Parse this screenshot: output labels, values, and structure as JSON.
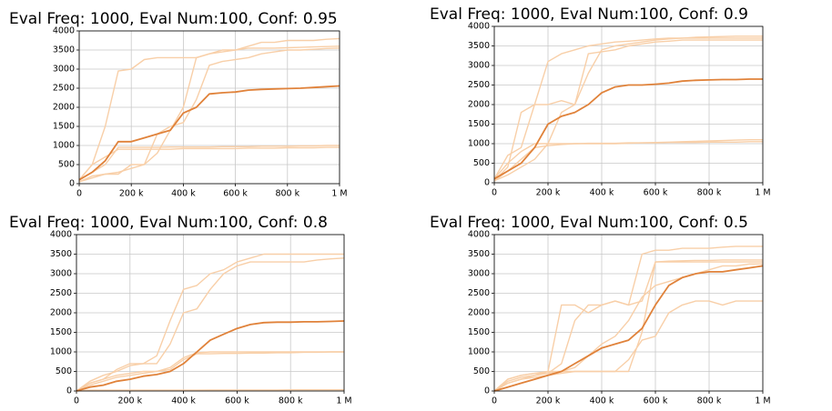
{
  "chart_data": [
    {
      "type": "line",
      "title": "Eval Freq: 1000, Eval Num:100, Conf: 0.95",
      "x": [
        0,
        50000,
        100000,
        150000,
        200000,
        250000,
        300000,
        350000,
        400000,
        450000,
        500000,
        550000,
        600000,
        650000,
        700000,
        750000,
        800000,
        850000,
        900000,
        950000,
        1000000
      ],
      "xlim": [
        0,
        1000000
      ],
      "xticks": [
        0,
        {
          "value": 200000,
          "label": "200 k"
        },
        {
          "value": 400000,
          "label": "400 k"
        },
        {
          "value": 600000,
          "label": "600 k"
        },
        {
          "value": 800000,
          "label": "800 k"
        },
        {
          "value": 1000000,
          "label": "1 M"
        }
      ],
      "ylim": [
        0,
        4000
      ],
      "yticks": [
        0,
        500,
        1000,
        1500,
        2000,
        2500,
        3000,
        3500,
        4000
      ],
      "grid": true,
      "series": [
        {
          "color": "#f8cfa8",
          "values": [
            100,
            500,
            1500,
            2950,
            3000,
            3250,
            3300,
            3300,
            3300,
            3300,
            3400,
            3450,
            3500,
            3600,
            3700,
            3700,
            3750,
            3750,
            3750,
            3780,
            3800
          ]
        },
        {
          "color": "#f8cfa8",
          "values": [
            100,
            500,
            700,
            900,
            900,
            900,
            900,
            900,
            920,
            920,
            920,
            920,
            920,
            930,
            930,
            930,
            940,
            940,
            940,
            950,
            950
          ]
        },
        {
          "color": "#f8cfa8",
          "values": [
            100,
            300,
            500,
            950,
            950,
            950,
            950,
            960,
            960,
            960,
            960,
            970,
            970,
            970,
            980,
            980,
            980,
            990,
            990,
            1000,
            1000
          ]
        },
        {
          "color": "#f8cfa8",
          "values": [
            50,
            200,
            250,
            250,
            500,
            500,
            800,
            1400,
            2000,
            3300,
            3400,
            3500,
            3500,
            3550,
            3550,
            3550,
            3560,
            3570,
            3580,
            3590,
            3600
          ]
        },
        {
          "color": "#f8cfa8",
          "values": [
            50,
            150,
            250,
            300,
            400,
            500,
            1300,
            1500,
            1600,
            2200,
            3100,
            3200,
            3250,
            3300,
            3400,
            3450,
            3500,
            3500,
            3520,
            3540,
            3550
          ]
        },
        {
          "color": "#e0823a",
          "values": [
            100,
            300,
            600,
            1100,
            1100,
            1200,
            1300,
            1400,
            1850,
            2000,
            2350,
            2380,
            2400,
            2450,
            2470,
            2480,
            2490,
            2500,
            2520,
            2540,
            2560
          ]
        }
      ]
    },
    {
      "type": "line",
      "title": "Eval Freq: 1000, Eval Num:100, Conf: 0.9",
      "x": [
        0,
        50000,
        100000,
        150000,
        200000,
        250000,
        300000,
        350000,
        400000,
        450000,
        500000,
        550000,
        600000,
        650000,
        700000,
        750000,
        800000,
        850000,
        900000,
        950000,
        1000000
      ],
      "xlim": [
        0,
        1000000
      ],
      "xticks": [
        0,
        {
          "value": 200000,
          "label": "200 k"
        },
        {
          "value": 400000,
          "label": "400 k"
        },
        {
          "value": 600000,
          "label": "600 k"
        },
        {
          "value": 800000,
          "label": "800 k"
        },
        {
          "value": 1000000,
          "label": "1 M"
        }
      ],
      "ylim": [
        0,
        4000
      ],
      "yticks": [
        0,
        500,
        1000,
        1500,
        2000,
        2500,
        3000,
        3500,
        4000
      ],
      "grid": true,
      "series": [
        {
          "color": "#f8cfa8",
          "values": [
            100,
            700,
            900,
            2000,
            3100,
            3300,
            3400,
            3500,
            3550,
            3600,
            3620,
            3650,
            3680,
            3700,
            3700,
            3720,
            3730,
            3740,
            3750,
            3750,
            3750
          ]
        },
        {
          "color": "#f8cfa8",
          "values": [
            100,
            500,
            800,
            1000,
            1000,
            1000,
            1000,
            1010,
            1010,
            1010,
            1020,
            1020,
            1020,
            1030,
            1030,
            1030,
            1040,
            1040,
            1040,
            1050,
            1050
          ]
        },
        {
          "color": "#f8cfa8",
          "values": [
            50,
            400,
            1800,
            2000,
            2000,
            2100,
            2000,
            2800,
            3400,
            3500,
            3550,
            3600,
            3650,
            3680,
            3700,
            3700,
            3700,
            3700,
            3700,
            3700,
            3700
          ]
        },
        {
          "color": "#f8cfa8",
          "values": [
            50,
            300,
            600,
            900,
            950,
            980,
            1000,
            1000,
            1000,
            1000,
            1010,
            1020,
            1030,
            1040,
            1050,
            1060,
            1070,
            1080,
            1090,
            1100,
            1100
          ]
        },
        {
          "color": "#f8cfa8",
          "values": [
            50,
            200,
            400,
            600,
            1000,
            1800,
            2000,
            3300,
            3350,
            3400,
            3500,
            3550,
            3600,
            3620,
            3650,
            3650,
            3650,
            3650,
            3650,
            3650,
            3650
          ]
        },
        {
          "color": "#e0823a",
          "values": [
            100,
            300,
            500,
            900,
            1500,
            1700,
            1800,
            2000,
            2300,
            2450,
            2500,
            2500,
            2520,
            2550,
            2600,
            2620,
            2630,
            2640,
            2640,
            2650,
            2650
          ]
        }
      ]
    },
    {
      "type": "line",
      "title": "Eval Freq: 1000, Eval Num:100, Conf: 0.8",
      "x": [
        0,
        50000,
        100000,
        150000,
        200000,
        250000,
        300000,
        350000,
        400000,
        450000,
        500000,
        550000,
        600000,
        650000,
        700000,
        750000,
        800000,
        850000,
        900000,
        950000,
        1000000
      ],
      "xlim": [
        0,
        1000000
      ],
      "xticks": [
        0,
        {
          "value": 200000,
          "label": "200 k"
        },
        {
          "value": 400000,
          "label": "400 k"
        },
        {
          "value": 600000,
          "label": "600 k"
        },
        {
          "value": 800000,
          "label": "800 k"
        },
        {
          "value": 1000000,
          "label": "1 M"
        }
      ],
      "ylim": [
        0,
        4000
      ],
      "yticks": [
        0,
        500,
        1000,
        1500,
        2000,
        2500,
        3000,
        3500,
        4000
      ],
      "grid": true,
      "series": [
        {
          "color": "#f8cfa8",
          "values": [
            0,
            200,
            300,
            550,
            700,
            700,
            900,
            1800,
            2600,
            2700,
            3000,
            3100,
            3300,
            3400,
            3500,
            3500,
            3500,
            3500,
            3500,
            3500,
            3500
          ]
        },
        {
          "color": "#f8cfa8",
          "values": [
            0,
            250,
            400,
            500,
            650,
            700,
            700,
            1200,
            2000,
            2100,
            2600,
            3000,
            3200,
            3300,
            3300,
            3300,
            3300,
            3300,
            3350,
            3380,
            3400
          ]
        },
        {
          "color": "#f8cfa8",
          "values": [
            0,
            200,
            300,
            400,
            450,
            500,
            500,
            550,
            800,
            950,
            950,
            960,
            960,
            970,
            970,
            980,
            980,
            990,
            990,
            1000,
            1000
          ]
        },
        {
          "color": "#f8cfa8",
          "values": [
            0,
            20,
            20,
            20,
            20,
            20,
            20,
            20,
            20,
            20,
            25,
            25,
            25,
            25,
            25,
            25,
            30,
            30,
            30,
            30,
            30
          ]
        },
        {
          "color": "#f8cfa8",
          "values": [
            0,
            150,
            250,
            350,
            400,
            450,
            500,
            600,
            850,
            980,
            1000,
            1000,
            1000,
            1000,
            1000,
            1000,
            1000,
            1000,
            1000,
            1000,
            1000
          ]
        },
        {
          "color": "#e0823a",
          "values": [
            0,
            100,
            150,
            250,
            300,
            380,
            420,
            500,
            700,
            1000,
            1300,
            1450,
            1600,
            1700,
            1750,
            1760,
            1760,
            1770,
            1770,
            1780,
            1790
          ]
        }
      ]
    },
    {
      "type": "line",
      "title": "Eval Freq: 1000, Eval Num:100, Conf: 0.5",
      "x": [
        0,
        50000,
        100000,
        150000,
        200000,
        250000,
        300000,
        350000,
        400000,
        450000,
        500000,
        550000,
        600000,
        650000,
        700000,
        750000,
        800000,
        850000,
        900000,
        950000,
        1000000
      ],
      "xlim": [
        0,
        1000000
      ],
      "xticks": [
        0,
        {
          "value": 200000,
          "label": "200 k"
        },
        {
          "value": 400000,
          "label": "400 k"
        },
        {
          "value": 600000,
          "label": "600 k"
        },
        {
          "value": 800000,
          "label": "800 k"
        },
        {
          "value": 1000000,
          "label": "1 M"
        }
      ],
      "ylim": [
        0,
        4000
      ],
      "yticks": [
        0,
        500,
        1000,
        1500,
        2000,
        2500,
        3000,
        3500,
        4000
      ],
      "grid": true,
      "series": [
        {
          "color": "#f8cfa8",
          "values": [
            0,
            300,
            400,
            450,
            500,
            2200,
            2200,
            2000,
            2200,
            2300,
            2200,
            3500,
            3600,
            3600,
            3650,
            3650,
            3650,
            3680,
            3700,
            3700,
            3700
          ]
        },
        {
          "color": "#f8cfa8",
          "values": [
            0,
            300,
            400,
            450,
            450,
            700,
            1800,
            2200,
            2200,
            2300,
            2200,
            2300,
            3300,
            3320,
            3330,
            3340,
            3340,
            3350,
            3350,
            3350,
            3350
          ]
        },
        {
          "color": "#f8cfa8",
          "values": [
            0,
            200,
            300,
            400,
            500,
            500,
            500,
            500,
            500,
            500,
            800,
            1300,
            1400,
            2000,
            2200,
            2300,
            2300,
            2200,
            2300,
            2300,
            2300
          ]
        },
        {
          "color": "#f8cfa8",
          "values": [
            0,
            200,
            300,
            350,
            400,
            450,
            500,
            500,
            500,
            500,
            500,
            1500,
            3300,
            3300,
            3300,
            3300,
            3300,
            3300,
            3300,
            3300,
            3300
          ]
        },
        {
          "color": "#f8cfa8",
          "values": [
            0,
            250,
            350,
            400,
            450,
            500,
            600,
            900,
            1200,
            1400,
            1800,
            2400,
            2700,
            2800,
            2900,
            3000,
            3100,
            3200,
            3200,
            3250,
            3250
          ]
        },
        {
          "color": "#e0823a",
          "values": [
            0,
            100,
            200,
            300,
            400,
            500,
            700,
            900,
            1100,
            1200,
            1300,
            1600,
            2200,
            2700,
            2900,
            3000,
            3050,
            3050,
            3100,
            3150,
            3200
          ]
        }
      ]
    }
  ]
}
